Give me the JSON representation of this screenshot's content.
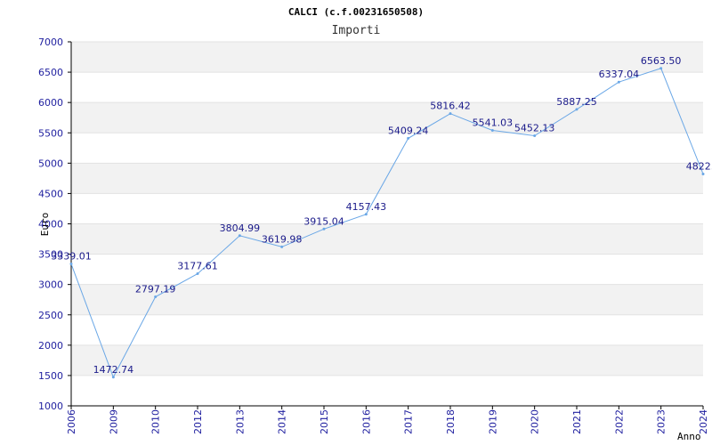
{
  "chart_data": {
    "type": "line",
    "title": "CALCI (c.f.00231650508)",
    "subtitle": "Importi",
    "xlabel": "Anno",
    "ylabel": "Euro",
    "ylim": [
      1000,
      7000
    ],
    "yticks": [
      1000,
      1500,
      2000,
      2500,
      3000,
      3500,
      4000,
      4500,
      5000,
      5500,
      6000,
      6500,
      7000
    ],
    "grid": true,
    "legend": "none",
    "line_color": "#6aa7e6",
    "band_color": "#f2f2f2",
    "categories": [
      "2006",
      "2009",
      "2010",
      "2012",
      "2013",
      "2014",
      "2015",
      "2016",
      "2017",
      "2018",
      "2019",
      "2020",
      "2021",
      "2022",
      "2023",
      "2024"
    ],
    "values": [
      3339.01,
      1472.74,
      2797.19,
      3177.61,
      3804.99,
      3619.98,
      3915.04,
      4157.43,
      5409.24,
      5816.42,
      5541.03,
      5452.13,
      5887.25,
      6337.04,
      6563.5,
      4822.0
    ],
    "value_labels": [
      "3339.01",
      "1472.74",
      "2797.19",
      "3177.61",
      "3804.99",
      "3619.98",
      "3915.04",
      "4157.43",
      "5409.24",
      "5816.42",
      "5541.03",
      "5452.13",
      "5887.25",
      "6337.04",
      "6563.50",
      "4822.0"
    ]
  }
}
